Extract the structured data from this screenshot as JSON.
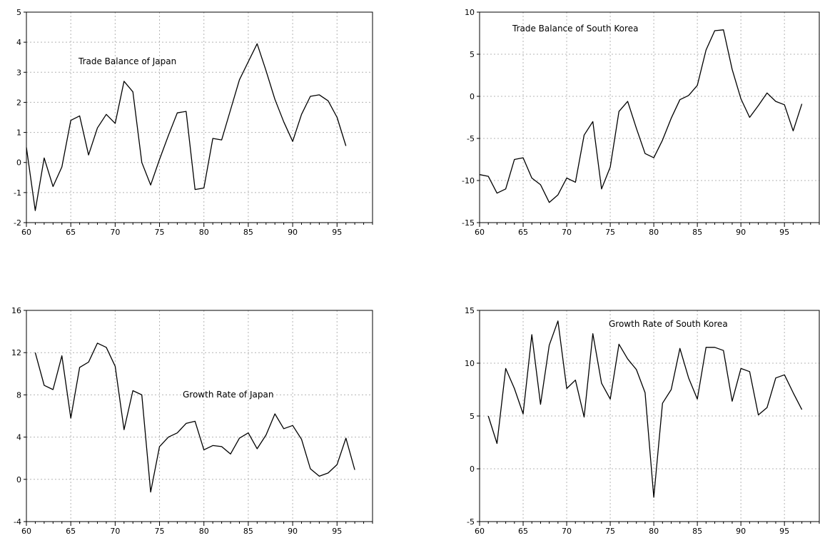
{
  "chart_data": [
    {
      "type": "line",
      "title": "Trade Balance of Japan",
      "xlabel": "",
      "ylabel": "",
      "xlim": [
        60,
        99
      ],
      "ylim": [
        -2,
        5
      ],
      "xticks": [
        60,
        65,
        70,
        75,
        80,
        85,
        90,
        95
      ],
      "xtick_labels": [
        "60",
        "65",
        "70",
        "75",
        "80",
        "85",
        "90",
        "95"
      ],
      "yticks": [
        -2,
        -1,
        0,
        1,
        2,
        3,
        4,
        5
      ],
      "ytick_labels": [
        "-2",
        "-1",
        "0",
        "1",
        "2",
        "3",
        "4",
        "5"
      ],
      "grid": true,
      "series": [
        {
          "x": [
            60,
            61,
            62,
            63,
            64,
            65,
            66,
            67,
            68,
            69,
            70,
            71,
            72,
            73,
            74,
            75,
            76,
            77,
            78,
            79,
            80,
            81,
            82,
            83,
            84,
            85,
            86,
            87,
            88,
            89,
            90,
            91,
            92,
            93,
            94,
            95,
            96
          ],
          "values": [
            0.5,
            -1.6,
            0.15,
            -0.8,
            -0.15,
            1.4,
            1.55,
            0.25,
            1.15,
            1.6,
            1.3,
            2.7,
            2.35,
            0.0,
            -0.75,
            0.1,
            0.9,
            1.65,
            1.7,
            -0.9,
            -0.85,
            0.8,
            0.75,
            1.75,
            2.75,
            3.35,
            3.95,
            3.05,
            2.1,
            1.35,
            0.7,
            1.6,
            2.2,
            2.25,
            2.05,
            1.5,
            0.55
          ]
        }
      ]
    },
    {
      "type": "line",
      "title": "Trade Balance of South Korea",
      "xlabel": "",
      "ylabel": "",
      "xlim": [
        60,
        99
      ],
      "ylim": [
        -15,
        10
      ],
      "xticks": [
        60,
        65,
        70,
        75,
        80,
        85,
        90,
        95
      ],
      "xtick_labels": [
        "60",
        "65",
        "70",
        "75",
        "80",
        "85",
        "90",
        "95"
      ],
      "yticks": [
        -15,
        -10,
        -5,
        0,
        5,
        10
      ],
      "ytick_labels": [
        "-15",
        "-10",
        "-5",
        "0",
        "5",
        "10"
      ],
      "grid": true,
      "series": [
        {
          "x": [
            60,
            61,
            62,
            63,
            64,
            65,
            66,
            67,
            68,
            69,
            70,
            71,
            72,
            73,
            74,
            75,
            76,
            77,
            78,
            79,
            80,
            81,
            82,
            83,
            84,
            85,
            86,
            87,
            88,
            89,
            90,
            91,
            92,
            93,
            94,
            95,
            96,
            97
          ],
          "values": [
            -9.3,
            -9.5,
            -11.5,
            -11.0,
            -7.5,
            -7.3,
            -9.7,
            -10.5,
            -12.6,
            -11.7,
            -9.7,
            -10.2,
            -4.6,
            -3.0,
            -11.0,
            -8.4,
            -1.8,
            -0.6,
            -3.8,
            -6.8,
            -7.3,
            -5.2,
            -2.6,
            -0.4,
            0.1,
            1.3,
            5.5,
            7.8,
            7.9,
            3.2,
            -0.3,
            -2.5,
            -1.1,
            0.4,
            -0.6,
            -1.0,
            -4.1,
            -0.9
          ]
        }
      ]
    },
    {
      "type": "line",
      "title": "Growth Rate of Japan",
      "xlabel": "",
      "ylabel": "",
      "xlim": [
        60,
        99
      ],
      "ylim": [
        -4,
        16
      ],
      "xticks": [
        60,
        65,
        70,
        75,
        80,
        85,
        90,
        95
      ],
      "xtick_labels": [
        "60",
        "65",
        "70",
        "75",
        "80",
        "85",
        "90",
        "95"
      ],
      "yticks": [
        -4,
        0,
        4,
        8,
        12,
        16
      ],
      "ytick_labels": [
        "-4",
        "0",
        "4",
        "8",
        "12",
        "16"
      ],
      "grid": true,
      "series": [
        {
          "x": [
            61,
            62,
            63,
            64,
            65,
            66,
            67,
            68,
            69,
            70,
            71,
            72,
            73,
            74,
            75,
            76,
            77,
            78,
            79,
            80,
            81,
            82,
            83,
            84,
            85,
            86,
            87,
            88,
            89,
            90,
            91,
            92,
            93,
            94,
            95,
            96,
            97
          ],
          "values": [
            12.0,
            8.9,
            8.5,
            11.7,
            5.8,
            10.6,
            11.1,
            12.9,
            12.5,
            10.7,
            4.7,
            8.4,
            8.0,
            -1.2,
            3.1,
            4.0,
            4.4,
            5.3,
            5.5,
            2.8,
            3.2,
            3.1,
            2.4,
            3.9,
            4.4,
            2.9,
            4.2,
            6.2,
            4.8,
            5.1,
            3.8,
            1.0,
            0.3,
            0.6,
            1.4,
            3.9,
            0.9
          ]
        }
      ]
    },
    {
      "type": "line",
      "title": "Growth Rate of South Korea",
      "xlabel": "",
      "ylabel": "",
      "xlim": [
        60,
        99
      ],
      "ylim": [
        -5,
        15
      ],
      "xticks": [
        60,
        65,
        70,
        75,
        80,
        85,
        90,
        95
      ],
      "xtick_labels": [
        "60",
        "65",
        "70",
        "75",
        "80",
        "85",
        "90",
        "95"
      ],
      "yticks": [
        -5,
        0,
        5,
        10,
        15
      ],
      "ytick_labels": [
        "-5",
        "0",
        "5",
        "10",
        "15"
      ],
      "grid": true,
      "series": [
        {
          "x": [
            61,
            62,
            63,
            64,
            65,
            66,
            67,
            68,
            69,
            70,
            71,
            72,
            73,
            74,
            75,
            76,
            77,
            78,
            79,
            80,
            81,
            82,
            83,
            84,
            85,
            86,
            87,
            88,
            89,
            90,
            91,
            92,
            93,
            94,
            95,
            96,
            97
          ],
          "values": [
            5.0,
            2.4,
            9.5,
            7.6,
            5.2,
            12.7,
            6.1,
            11.7,
            14.0,
            7.6,
            8.4,
            4.9,
            12.8,
            8.1,
            6.6,
            11.8,
            10.4,
            9.4,
            7.2,
            -2.7,
            6.2,
            7.5,
            11.4,
            8.6,
            6.6,
            11.5,
            11.5,
            11.2,
            6.4,
            9.5,
            9.2,
            5.1,
            5.8,
            8.6,
            8.9,
            7.2,
            5.6
          ]
        }
      ]
    }
  ]
}
